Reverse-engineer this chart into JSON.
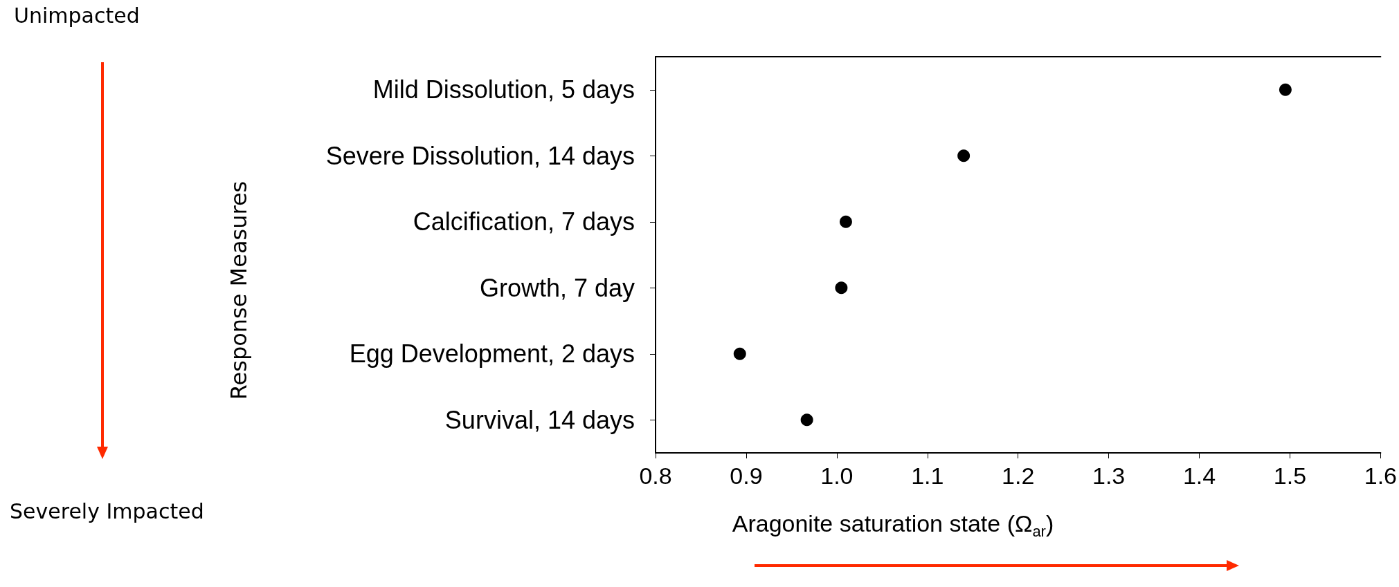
{
  "chart_data": {
    "type": "scatter",
    "ylabel": "Response Measures",
    "xlabel": "Aragonite saturation state (Ω$_{ar}$)",
    "categories": [
      "Mild Dissolution, 5 days",
      "Severe Dissolution, 14 days",
      "Calcification, 7 days",
      "Growth, 7 day",
      "Egg Development, 2 days",
      "Survival, 14 days"
    ],
    "series": [
      {
        "color": "#000000",
        "values": [
          1.495,
          1.14,
          1.01,
          1.005,
          0.893,
          0.967
        ]
      }
    ],
    "orientation": "horizontal",
    "marker": "circle",
    "xlim": [
      0.8,
      1.6
    ],
    "xticks": [
      0.8,
      0.9,
      {
        "value": 1,
        "label": "1.0"
      },
      1.1,
      1.2,
      1.3,
      1.4,
      1.5,
      1.6
    ],
    "annotations": [
      "Unimpacted",
      "Severely Impacted"
    ],
    "grid": false
  }
}
